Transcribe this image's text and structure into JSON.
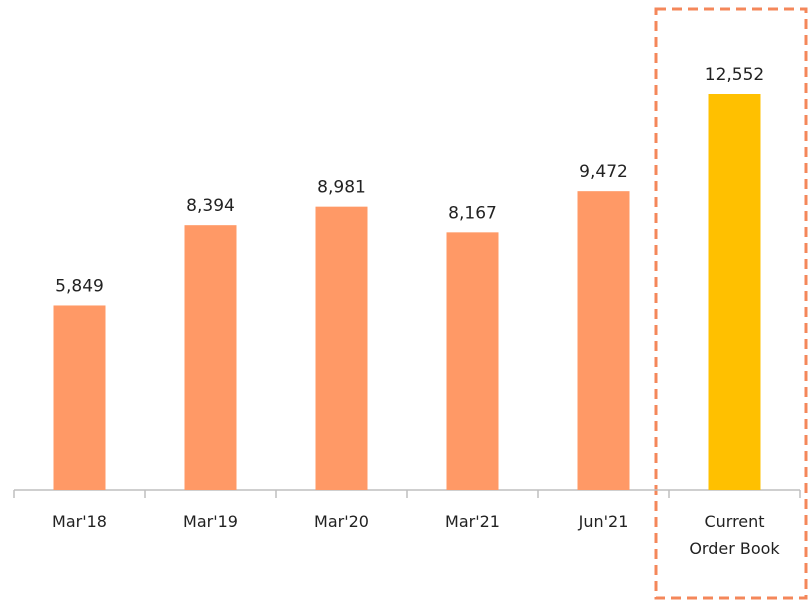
{
  "chart_data": {
    "type": "bar",
    "categories": [
      "Mar'18",
      "Mar'19",
      "Mar'20",
      "Mar'21",
      "Jun'21",
      "Current Order Book"
    ],
    "values": [
      5849,
      8394,
      8981,
      8167,
      9472,
      12552
    ],
    "value_labels": [
      "5,849",
      "8,394",
      "8,981",
      "8,167",
      "9,472",
      "12,552"
    ],
    "colors": [
      "#ff9966",
      "#ff9966",
      "#ff9966",
      "#ff9966",
      "#ff9966",
      "#ffc000"
    ]
  }
}
